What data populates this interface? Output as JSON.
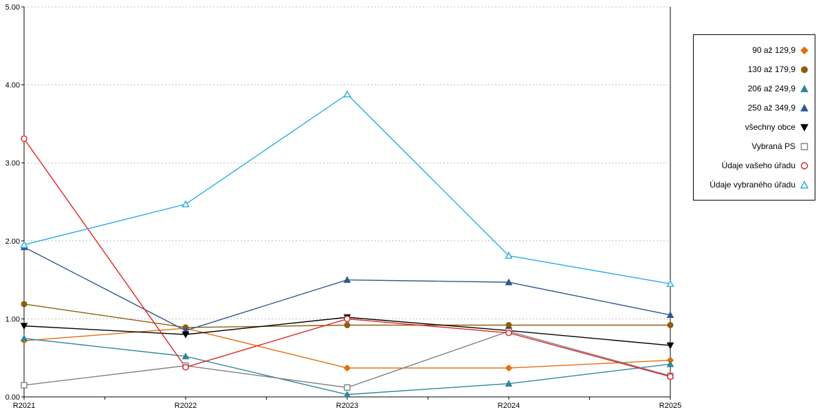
{
  "chart_data": {
    "type": "line",
    "title": "",
    "x_labels": [
      "R2021",
      "R2022",
      "R2023",
      "R2024",
      "R2025"
    ],
    "y_ticks": [
      "0.00",
      "1.00",
      "2.00",
      "3.00",
      "4.00",
      "5.00"
    ],
    "ylim": [
      0,
      5
    ],
    "grid": "horizontal-dotted",
    "legend_position": "right-outside",
    "series": [
      {
        "name": "90 až 129,9",
        "color": "#E36C0A",
        "marker": "diamond",
        "style": "filled",
        "values": [
          0.72,
          0.88,
          0.37,
          0.37,
          0.47
        ]
      },
      {
        "name": "130 až 179,9",
        "color": "#8E5C0C",
        "marker": "circle",
        "style": "filled",
        "values": [
          1.19,
          0.89,
          0.92,
          0.92,
          0.92
        ]
      },
      {
        "name": "206 až 249,9",
        "color": "#31859C",
        "marker": "triangle-up",
        "style": "filled",
        "values": [
          0.75,
          0.52,
          0.03,
          0.17,
          0.42
        ]
      },
      {
        "name": "250 až 349,9",
        "color": "#2E5A8F",
        "marker": "triangle-up",
        "style": "filled",
        "values": [
          1.92,
          0.85,
          1.5,
          1.47,
          1.05
        ]
      },
      {
        "name": "všechny obce",
        "color": "#000000",
        "marker": "triangle-down",
        "style": "filled",
        "values": [
          0.91,
          0.8,
          1.02,
          0.85,
          0.66
        ]
      },
      {
        "name": "Vybraná PS",
        "color": "#808080",
        "marker": "square",
        "style": "open",
        "values": [
          0.15,
          0.4,
          0.12,
          0.84,
          0.27
        ]
      },
      {
        "name": "Údaje vašeho úřadu",
        "color": "#E02020",
        "marker": "circle",
        "style": "open",
        "values": [
          3.31,
          0.38,
          1.0,
          0.82,
          0.26
        ]
      },
      {
        "name": "Údaje vybraného úřadu",
        "color": "#29ABE2",
        "marker": "triangle-up",
        "style": "open",
        "values": [
          1.95,
          2.47,
          3.88,
          1.81,
          1.45
        ]
      }
    ]
  }
}
